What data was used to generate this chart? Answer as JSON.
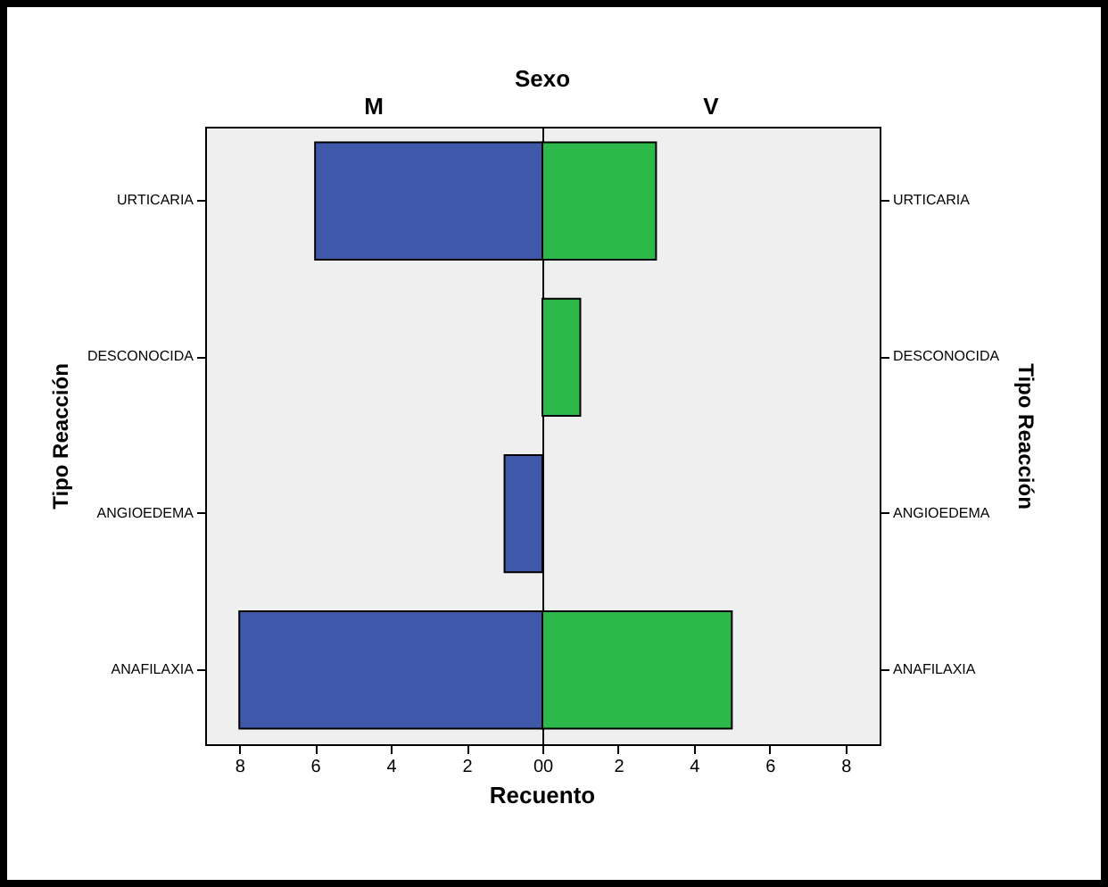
{
  "chart_data": [
    {
      "type": "bar",
      "orientation": "horizontal",
      "title": "Sexo",
      "subtitle": "M",
      "xlabel": "Recuento",
      "ylabel": "Tipo Reacción",
      "categories": [
        "URTICARIA",
        "DESCONOCIDA",
        "ANGIOEDEMA",
        "ANAFILAXIA"
      ],
      "values": [
        6,
        null,
        1,
        8
      ],
      "color": "#3f58aa",
      "xlim": [
        8.9,
        0
      ],
      "xticks": [
        8,
        6,
        4,
        2,
        0
      ]
    },
    {
      "type": "bar",
      "orientation": "horizontal",
      "subtitle": "V",
      "ylabel": "Tipo Reacción",
      "categories": [
        "URTICARIA",
        "DESCONOCIDA",
        "ANGIOEDEMA",
        "ANAFILAXIA"
      ],
      "values": [
        3,
        1,
        null,
        5
      ],
      "color": "#2db84a",
      "xlim": [
        0,
        8.9
      ],
      "xticks": [
        0,
        2,
        4,
        6,
        8
      ]
    }
  ]
}
